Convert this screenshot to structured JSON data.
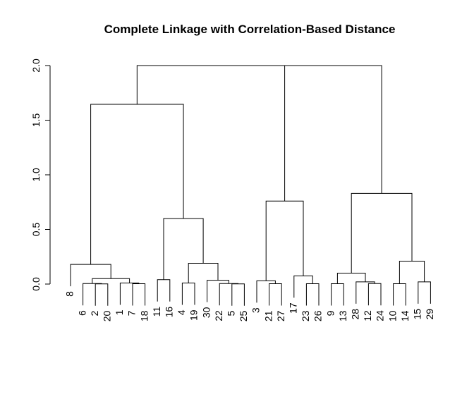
{
  "chart_data": {
    "type": "dendrogram",
    "title": "Complete Linkage with Correlation-Based Distance",
    "ylim": [
      0,
      2
    ],
    "yticks": [
      {
        "value": 0,
        "label": "0.0"
      },
      {
        "value": 0.5,
        "label": "0.5"
      },
      {
        "value": 1,
        "label": "1.0"
      },
      {
        "value": 1.5,
        "label": "1.5"
      },
      {
        "value": 2,
        "label": "2.0"
      }
    ],
    "color": "#000000",
    "tree": {
      "height": 2.0,
      "children": [
        {
          "height": 1.645,
          "children": [
            {
              "height": 0.18,
              "children": [
                {
                  "label": "8"
                },
                {
                  "height": 0.05,
                  "children": [
                    {
                      "height": 0.005,
                      "children": [
                        {
                          "label": "6"
                        },
                        {
                          "height": 0.002,
                          "children": [
                            {
                              "label": "2"
                            },
                            {
                              "label": "20"
                            }
                          ]
                        }
                      ]
                    },
                    {
                      "height": 0.01,
                      "children": [
                        {
                          "label": "1"
                        },
                        {
                          "height": 0.003,
                          "children": [
                            {
                              "label": "7"
                            },
                            {
                              "label": "18"
                            }
                          ]
                        }
                      ]
                    }
                  ]
                }
              ]
            },
            {
              "height": 0.6,
              "children": [
                {
                  "height": 0.04,
                  "children": [
                    {
                      "label": "11"
                    },
                    {
                      "label": "16"
                    }
                  ]
                },
                {
                  "height": 0.19,
                  "children": [
                    {
                      "height": 0.01,
                      "children": [
                        {
                          "label": "4"
                        },
                        {
                          "label": "19"
                        }
                      ]
                    },
                    {
                      "height": 0.035,
                      "children": [
                        {
                          "label": "30"
                        },
                        {
                          "height": 0.005,
                          "children": [
                            {
                              "label": "22"
                            },
                            {
                              "height": 0.002,
                              "children": [
                                {
                                  "label": "5"
                                },
                                {
                                  "label": "25"
                                }
                              ]
                            }
                          ]
                        }
                      ]
                    }
                  ]
                }
              ]
            }
          ]
        },
        {
          "height": 2.0,
          "children": [
            {
              "height": 0.76,
              "children": [
                {
                  "height": 0.03,
                  "children": [
                    {
                      "label": "3"
                    },
                    {
                      "height": 0.003,
                      "children": [
                        {
                          "label": "21"
                        },
                        {
                          "label": "27"
                        }
                      ]
                    }
                  ]
                },
                {
                  "height": 0.075,
                  "children": [
                    {
                      "label": "17"
                    },
                    {
                      "height": 0.003,
                      "children": [
                        {
                          "label": "23"
                        },
                        {
                          "label": "26"
                        }
                      ]
                    }
                  ]
                }
              ]
            },
            {
              "height": 0.83,
              "children": [
                {
                  "height": 0.1,
                  "children": [
                    {
                      "height": 0.003,
                      "children": [
                        {
                          "label": "9"
                        },
                        {
                          "label": "13"
                        }
                      ]
                    },
                    {
                      "height": 0.02,
                      "children": [
                        {
                          "label": "28"
                        },
                        {
                          "height": 0.005,
                          "children": [
                            {
                              "label": "12"
                            },
                            {
                              "label": "24"
                            }
                          ]
                        }
                      ]
                    }
                  ]
                },
                {
                  "height": 0.21,
                  "children": [
                    {
                      "height": 0.003,
                      "children": [
                        {
                          "label": "10"
                        },
                        {
                          "label": "14"
                        }
                      ]
                    },
                    {
                      "height": 0.02,
                      "children": [
                        {
                          "label": "15"
                        },
                        {
                          "label": "29"
                        }
                      ]
                    }
                  ]
                }
              ]
            }
          ]
        }
      ]
    }
  }
}
